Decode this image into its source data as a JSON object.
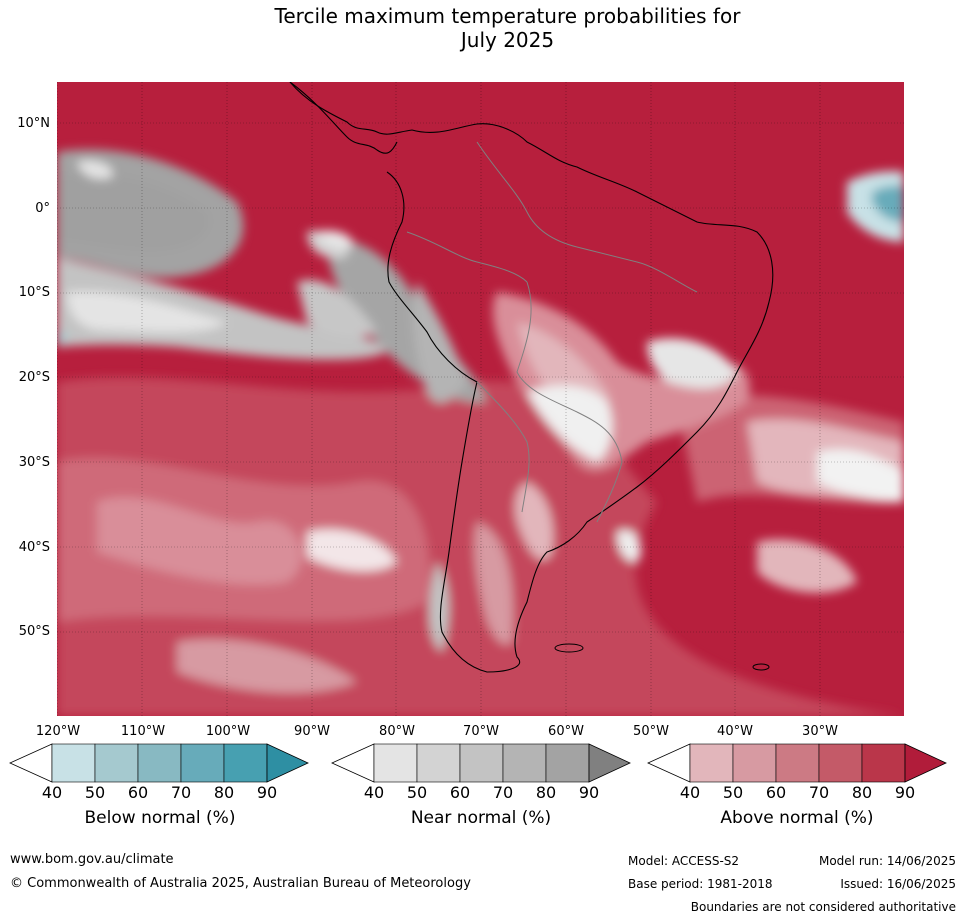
{
  "title_line1": "Tercile maximum temperature probabilities for",
  "title_line2": "July 2025",
  "map": {
    "lat_labels": [
      "10°N",
      "0°",
      "10°S",
      "20°S",
      "30°S",
      "40°S",
      "50°S"
    ],
    "lon_labels": [
      "120°W",
      "110°W",
      "100°W",
      "90°W",
      "80°W",
      "70°W",
      "60°W",
      "50°W",
      "40°W",
      "30°W"
    ]
  },
  "legends": {
    "below": {
      "title": "Below normal (%)",
      "ticks": [
        "40",
        "50",
        "60",
        "70",
        "80",
        "90"
      ],
      "colors": [
        "#ffffff",
        "#c8e1e6",
        "#a5c9cf",
        "#88b9c2",
        "#67abba",
        "#47a0b1",
        "#2e8fa3"
      ]
    },
    "near": {
      "title": "Near normal (%)",
      "ticks": [
        "40",
        "50",
        "60",
        "70",
        "80",
        "90"
      ],
      "colors": [
        "#ffffff",
        "#e4e4e4",
        "#d3d3d3",
        "#c3c3c3",
        "#b4b4b4",
        "#a3a3a3",
        "#808080"
      ]
    },
    "above": {
      "title": "Above normal (%)",
      "ticks": [
        "40",
        "50",
        "60",
        "70",
        "80",
        "90"
      ],
      "colors": [
        "#ffffff",
        "#e2b6bb",
        "#d79aa2",
        "#cc7a84",
        "#c45a68",
        "#ba364a",
        "#b11c3a"
      ]
    }
  },
  "footer": {
    "url": "www.bom.gov.au/climate",
    "copyright": "© Commonwealth of Australia 2025, Australian Bureau of Meteorology",
    "model": "Model: ACCESS-S2",
    "base_period": "Base period: 1981-2018",
    "model_run": "Model run: 14/06/2025",
    "issued": "Issued: 16/06/2025",
    "disclaimer": "Boundaries are not considered authoritative"
  }
}
